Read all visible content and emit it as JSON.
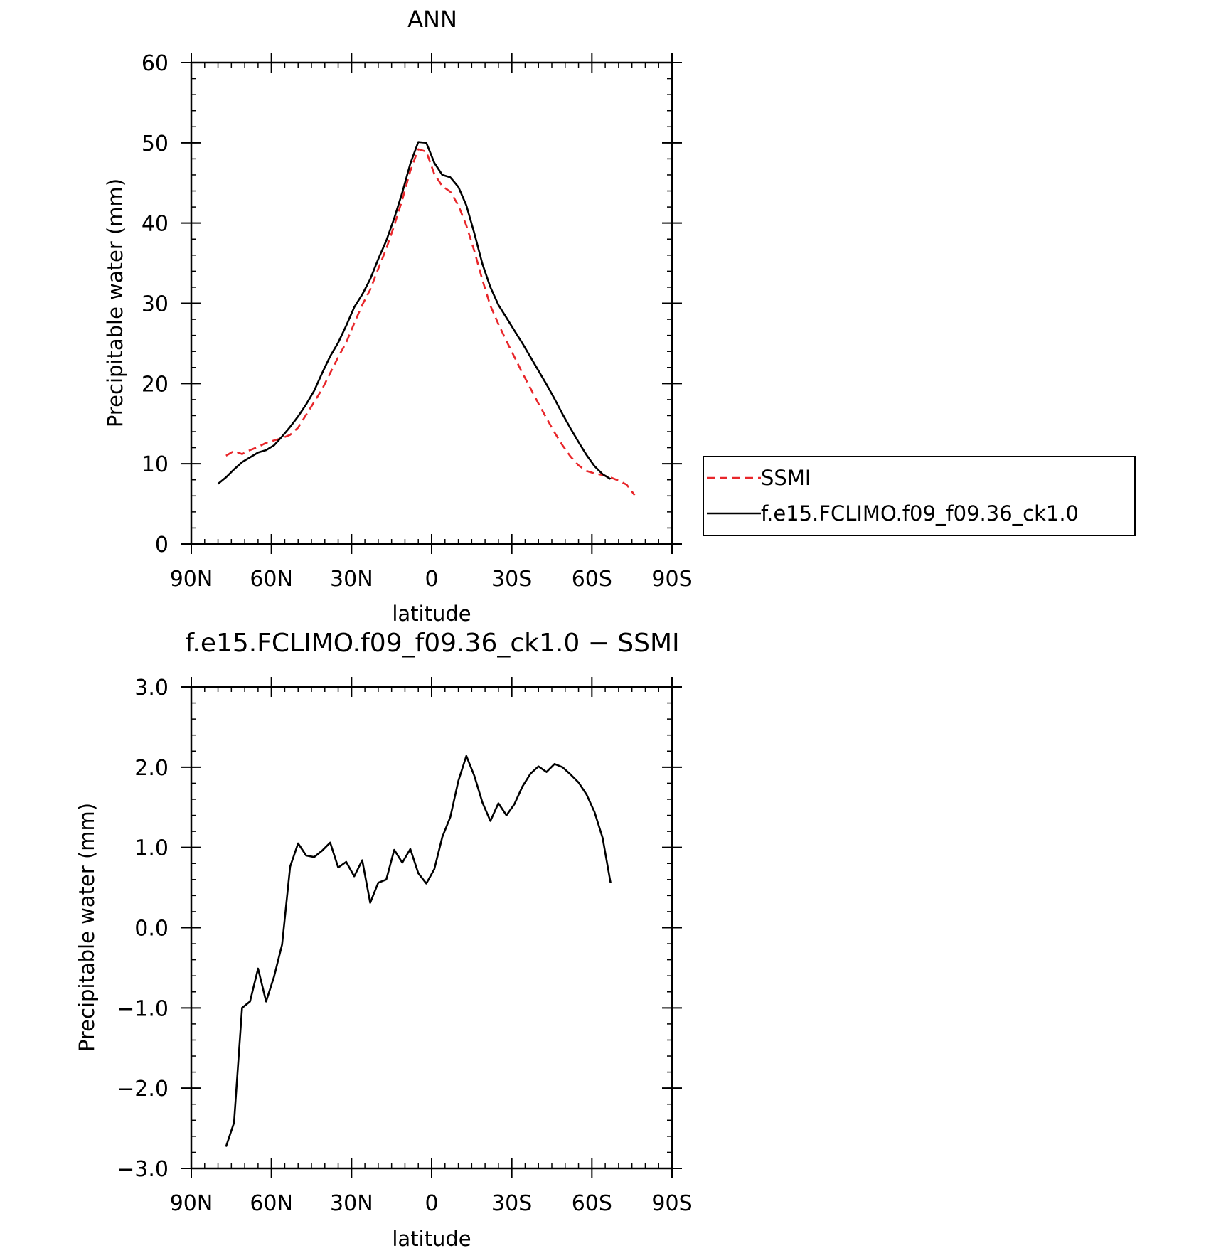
{
  "chart_data": [
    {
      "type": "line",
      "title": "ANN",
      "xlabel": "latitude",
      "ylabel": "Precipitable water (mm)",
      "xlim": [
        90,
        -90
      ],
      "ylim": [
        0,
        60
      ],
      "x_ticks": [
        90,
        60,
        30,
        0,
        -30,
        -60,
        -90
      ],
      "x_tick_labels": [
        "90N",
        "60N",
        "30N",
        "0",
        "30S",
        "60S",
        "90S"
      ],
      "y_ticks": [
        0,
        10,
        20,
        30,
        40,
        50,
        60
      ],
      "y_tick_labels": [
        "0",
        "10",
        "20",
        "30",
        "40",
        "50",
        "60"
      ],
      "grid": false,
      "legend": "outside-right",
      "series": [
        {
          "name": "SSMI",
          "color": "#e8262a",
          "style": "dashed",
          "x": [
            77,
            74,
            71,
            68,
            65,
            62,
            59,
            56,
            53,
            50,
            47,
            44,
            41,
            38,
            35,
            32,
            29,
            26,
            23,
            20,
            17,
            14,
            11,
            8,
            5,
            2,
            -1,
            -4,
            -7,
            -10,
            -13,
            -16,
            -19,
            -22,
            -25,
            -28,
            -31,
            -34,
            -37,
            -40,
            -43,
            -46,
            -49,
            -52,
            -55,
            -58,
            -61,
            -64,
            -67,
            -70,
            -73,
            -76
          ],
          "y": [
            11.0,
            11.6,
            11.2,
            11.7,
            12.1,
            12.6,
            12.9,
            13.2,
            13.6,
            14.5,
            16.1,
            17.7,
            19.3,
            21.3,
            23.3,
            25.1,
            27.5,
            29.8,
            31.7,
            34.3,
            36.8,
            39.7,
            42.9,
            46.5,
            49.2,
            48.9,
            46.1,
            44.6,
            43.9,
            42.2,
            39.7,
            36.5,
            32.9,
            29.7,
            27.4,
            25.3,
            23.3,
            21.3,
            19.4,
            17.5,
            15.7,
            13.9,
            12.3,
            10.9,
            9.8,
            9.1,
            8.8,
            8.6,
            8.3,
            7.9,
            7.4,
            6.1
          ]
        },
        {
          "name": "f.e15.FCLIMO.f09_f09.36_ck1.0",
          "color": "#000000",
          "style": "solid",
          "x": [
            80,
            77,
            74,
            71,
            68,
            65,
            62,
            59,
            56,
            53,
            50,
            47,
            44,
            41,
            38,
            35,
            32,
            29,
            26,
            23,
            20,
            17,
            14,
            11,
            8,
            5,
            2,
            -1,
            -4,
            -7,
            -10,
            -13,
            -16,
            -19,
            -22,
            -25,
            -28,
            -31,
            -34,
            -37,
            -40,
            -43,
            -46,
            -49,
            -52,
            -55,
            -58,
            -61,
            -64,
            -67
          ],
          "y": [
            7.5,
            8.3,
            9.3,
            10.2,
            10.8,
            11.4,
            11.7,
            12.3,
            13.4,
            14.6,
            15.9,
            17.4,
            19.1,
            21.3,
            23.4,
            25.1,
            27.2,
            29.5,
            31.1,
            33.0,
            35.5,
            37.8,
            40.6,
            43.8,
            47.4,
            50.1,
            50.0,
            47.5,
            46.0,
            45.7,
            44.5,
            42.2,
            38.7,
            34.9,
            32.0,
            29.8,
            28.2,
            26.6,
            25.0,
            23.3,
            21.6,
            19.9,
            18.1,
            16.2,
            14.4,
            12.7,
            11.1,
            9.7,
            8.7,
            8.1
          ]
        }
      ]
    },
    {
      "type": "line",
      "title": "f.e15.FCLIMO.f09_f09.36_ck1.0 − SSMI",
      "xlabel": "latitude",
      "ylabel": "Precipitable water (mm)",
      "xlim": [
        90,
        -90
      ],
      "ylim": [
        -3.0,
        3.0
      ],
      "x_ticks": [
        90,
        60,
        30,
        0,
        -30,
        -60,
        -90
      ],
      "x_tick_labels": [
        "90N",
        "60N",
        "30N",
        "0",
        "30S",
        "60S",
        "90S"
      ],
      "y_ticks": [
        -3.0,
        -2.0,
        -1.0,
        0.0,
        1.0,
        2.0,
        3.0
      ],
      "y_tick_labels": [
        "−3.0",
        "−2.0",
        "−1.0",
        "0.0",
        "1.0",
        "2.0",
        "3.0"
      ],
      "grid": false,
      "series": [
        {
          "color": "#000000",
          "style": "solid",
          "x": [
            77,
            74,
            71,
            68,
            65,
            62,
            59,
            56,
            53,
            50,
            47,
            44,
            41,
            38,
            35,
            32,
            29,
            26,
            23,
            20,
            17,
            14,
            11,
            8,
            5,
            2,
            -1,
            -4,
            -7,
            -10,
            -13,
            -16,
            -19,
            -22,
            -25,
            -28,
            -31,
            -34,
            -37,
            -40,
            -43,
            -46,
            -49,
            -52,
            -55,
            -58,
            -61,
            -64,
            -67
          ],
          "y": [
            -2.73,
            -2.43,
            -1.0,
            -0.92,
            -0.51,
            -0.92,
            -0.61,
            -0.21,
            0.76,
            1.05,
            0.9,
            0.88,
            0.96,
            1.06,
            0.75,
            0.82,
            0.64,
            0.84,
            0.31,
            0.56,
            0.6,
            0.97,
            0.81,
            0.98,
            0.68,
            0.55,
            0.73,
            1.13,
            1.38,
            1.83,
            2.14,
            1.89,
            1.56,
            1.33,
            1.55,
            1.4,
            1.54,
            1.76,
            1.92,
            2.01,
            1.94,
            2.04,
            2.0,
            1.91,
            1.81,
            1.66,
            1.44,
            1.12,
            0.56
          ]
        }
      ]
    }
  ]
}
